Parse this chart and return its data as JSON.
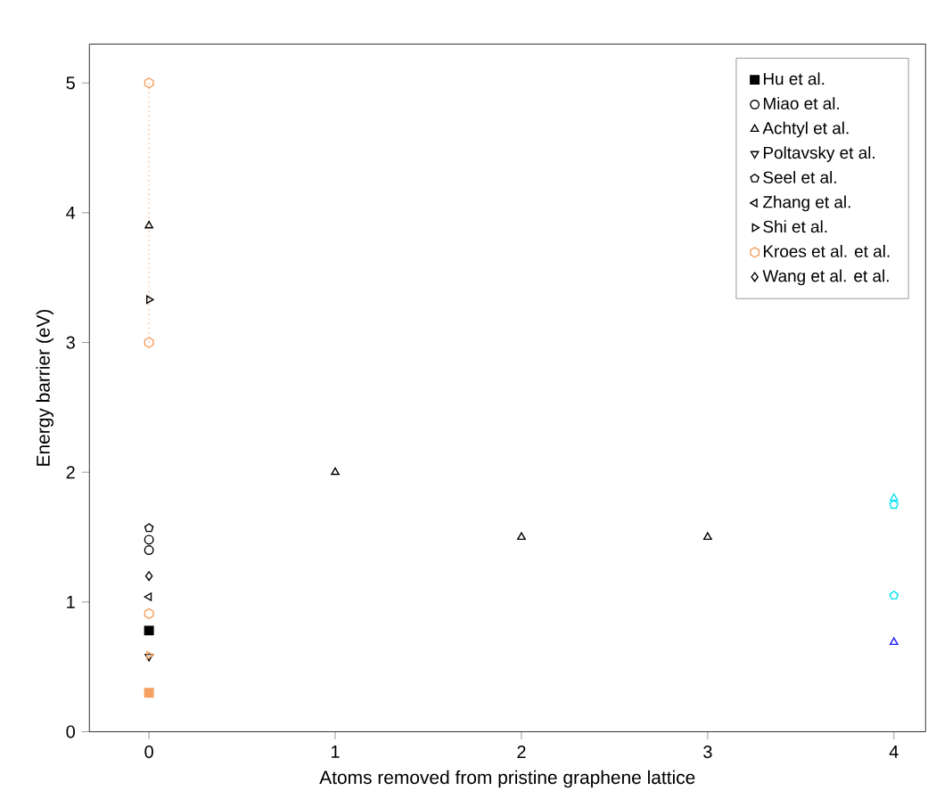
{
  "chart_data": {
    "type": "scatter",
    "xlabel": "Atoms removed from pristine graphene lattice",
    "ylabel": "Energy barrier (eV)",
    "xlim": [
      -0.32,
      4.17
    ],
    "ylim": [
      0,
      5.3
    ],
    "xticks": [
      0,
      1,
      2,
      3,
      4
    ],
    "yticks": [
      0,
      1,
      2,
      3,
      4,
      5
    ],
    "grid": false,
    "legend": "top right",
    "series": [
      {
        "name": "Hu et al.",
        "marker": "square",
        "color": "#000000",
        "x": [
          0,
          0
        ],
        "values": [
          0.78,
          0.3
        ],
        "colors": [
          "#000000",
          "#f4a060"
        ]
      },
      {
        "name": "Miao et al.",
        "marker": "circle",
        "color": "#000000",
        "x": [
          0,
          0
        ],
        "values": [
          1.48,
          1.4
        ]
      },
      {
        "name": "Achtyl et al.",
        "marker": "triangle",
        "color": "#000000",
        "x": [
          0,
          1,
          2,
          3,
          4,
          4
        ],
        "values": [
          3.9,
          2.0,
          1.5,
          1.5,
          0.69,
          1.8
        ],
        "colors": [
          "#000000",
          "#000000",
          "#000000",
          "#000000",
          "#1a1aff",
          "#00e0f0"
        ]
      },
      {
        "name": "Poltavsky et al.",
        "marker": "triangle-down",
        "color": "#000000",
        "x": [
          0
        ],
        "values": [
          0.58
        ]
      },
      {
        "name": "Seel et al.",
        "color": "#000000",
        "x": [
          0,
          4,
          4
        ],
        "values": [
          1.57,
          1.75,
          1.05
        ],
        "colors": [
          "#000000",
          "#00e0f0",
          "#00e0f0"
        ]
      },
      {
        "name": "Zhang et al.",
        "marker": "triangle-left",
        "color": "#000000",
        "x": [
          0
        ],
        "values": [
          1.04
        ]
      },
      {
        "name": "Shi et al.",
        "marker": "triangle-right",
        "color": "#000000",
        "x": [
          0,
          0
        ],
        "values": [
          3.33,
          0.59
        ],
        "colors": [
          "#000000",
          "#f4a060"
        ]
      },
      {
        "type": "line",
        "marker": "none",
        "color": "#f4a060",
        "line_style": "dotted",
        "x": [
          0,
          0
        ],
        "values": [
          5.0,
          3.0
        ]
      },
      {
        "name": "Kroes et al. et al.",
        "color": "#f4a060",
        "x": [
          0,
          0,
          0
        ],
        "values": [
          5.0,
          3.0,
          0.91
        ]
      },
      {
        "name": "Wang et al. et al.",
        "marker": "diamond",
        "color": "#000000",
        "x": [
          0
        ],
        "values": [
          1.2
        ]
      }
    ]
  }
}
